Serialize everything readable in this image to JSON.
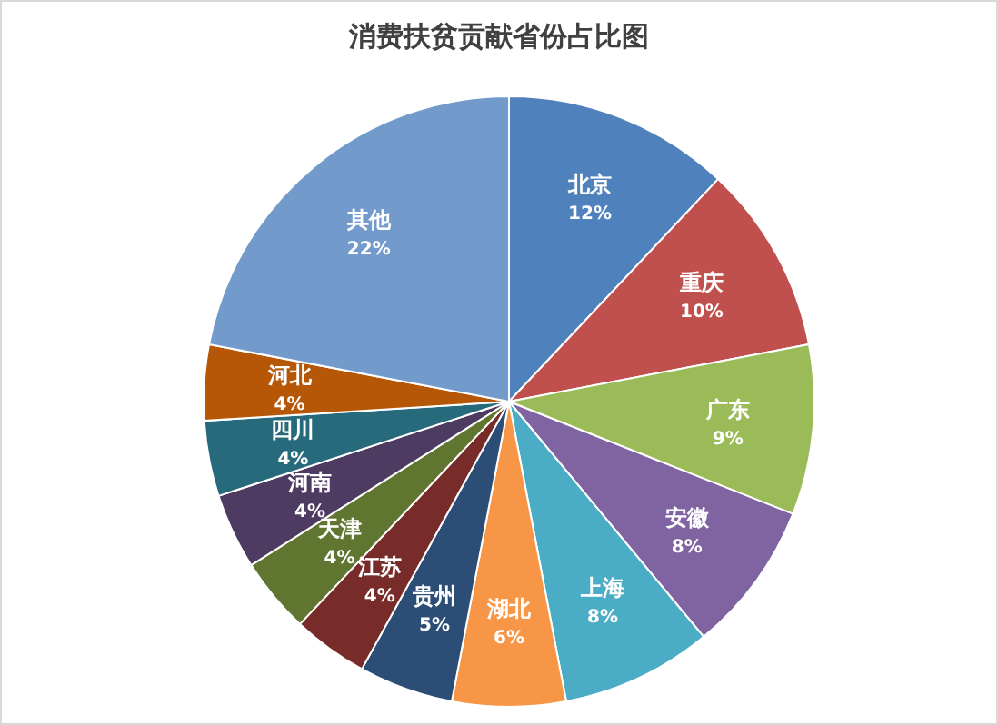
{
  "chart_data": {
    "type": "pie",
    "title": "消费扶贫贡献省份占比图",
    "categories": [
      "北京",
      "重庆",
      "广东",
      "安徽",
      "上海",
      "湖北",
      "贵州",
      "江苏",
      "天津",
      "河南",
      "四川",
      "河北",
      "其他"
    ],
    "values": [
      12,
      10,
      9,
      8,
      8,
      6,
      5,
      4,
      4,
      4,
      4,
      4,
      22
    ],
    "value_labels": [
      "12%",
      "10%",
      "9%",
      "8%",
      "8%",
      "6%",
      "5%",
      "4%",
      "4%",
      "4%",
      "4%",
      "4%",
      "22%"
    ],
    "colors": [
      "#4f81bd",
      "#c0504d",
      "#9bbb59",
      "#8064a2",
      "#4bacc6",
      "#f79646",
      "#2c4d75",
      "#772c2a",
      "#5f7530",
      "#4d3b62",
      "#276a7c",
      "#b65708",
      "#729aca"
    ],
    "legend": false
  }
}
